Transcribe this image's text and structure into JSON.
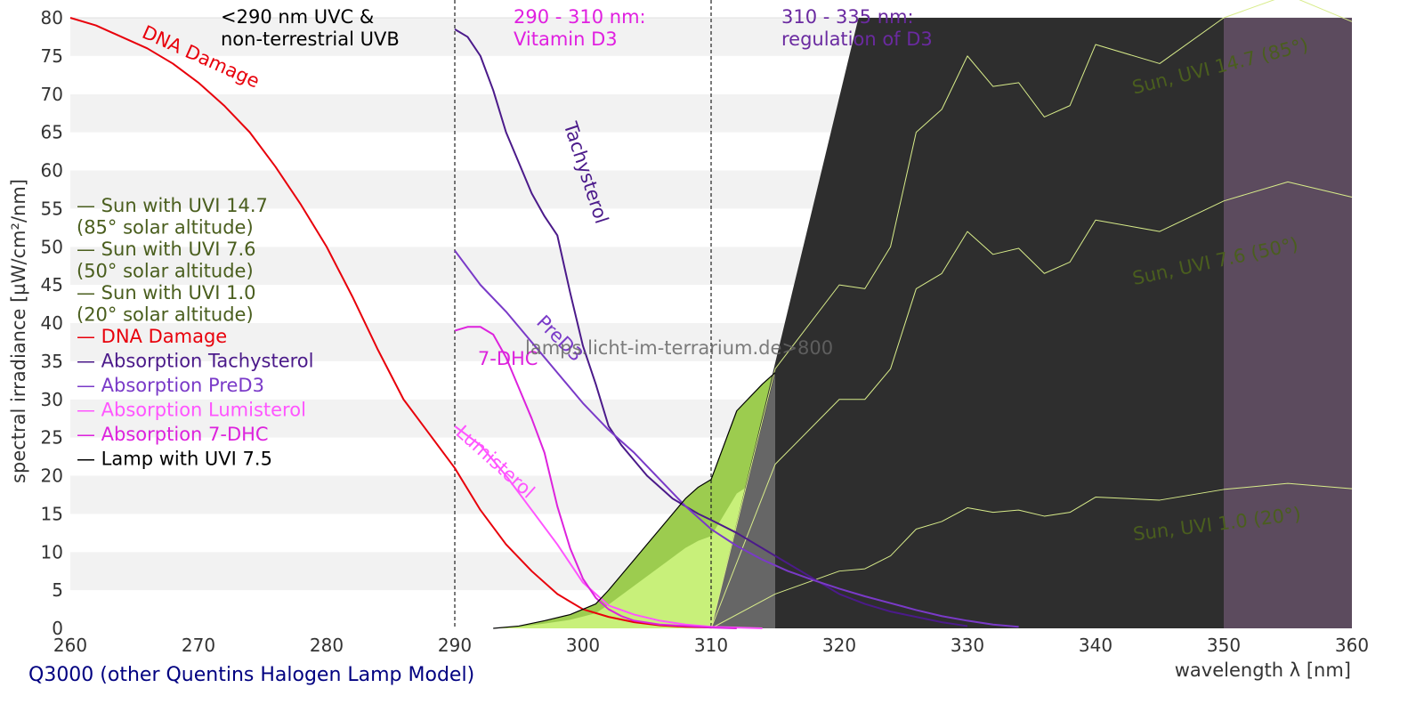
{
  "footer": "Q3000 (other Quentins Halogen Lamp Model)",
  "watermark": "lamps.licht-im-terrarium.de>800",
  "chart_data": {
    "type": "line",
    "xlabel": "wavelength λ [nm]",
    "ylabel": "spectral irradiance [µW/cm²/nm]",
    "xlim": [
      260,
      360
    ],
    "ylim": [
      0,
      80
    ],
    "xticks": [
      260,
      270,
      280,
      290,
      300,
      310,
      320,
      330,
      340,
      350,
      360
    ],
    "yticks": [
      0,
      5,
      10,
      15,
      20,
      25,
      30,
      35,
      40,
      45,
      50,
      55,
      60,
      65,
      70,
      75,
      80
    ],
    "grid": "horizontal bands",
    "region_dividers": [
      290,
      310
    ],
    "regions": [
      {
        "lines": [
          "<290 nm UVC &",
          "non-terrestrial UVB"
        ],
        "color": "#000000"
      },
      {
        "lines": [
          "290 - 310 nm:",
          "Vitamin D3"
        ],
        "color": "#e020e0"
      },
      {
        "lines": [
          "310 - 335 nm:",
          "regulation of D3"
        ],
        "color": "#6a2aa0"
      }
    ],
    "legend": [
      {
        "lines": [
          "— Sun with UVI 14.7",
          "  (85° solar altitude)"
        ],
        "color": "#4a5e1e"
      },
      {
        "lines": [
          "— Sun with UVI 7.6",
          "  (50° solar altitude)"
        ],
        "color": "#4a5e1e"
      },
      {
        "lines": [
          "— Sun with UVI 1.0",
          "  (20° solar altitude)"
        ],
        "color": "#4a5e1e"
      },
      {
        "lines": [
          "— DNA Damage"
        ],
        "color": "#e8000b"
      },
      {
        "lines": [
          "— Absorption Tachysterol"
        ],
        "color": "#4b1a8a"
      },
      {
        "lines": [
          "— Absorption PreD3"
        ],
        "color": "#7a3ac8"
      },
      {
        "lines": [
          "— Absorption Lumisterol"
        ],
        "color": "#ff55ff"
      },
      {
        "lines": [
          "— Absorption 7-DHC"
        ],
        "color": "#dd22dd"
      },
      {
        "lines": [
          "— Lamp with UVI 7.5"
        ],
        "color": "#000000"
      }
    ],
    "curve_labels": [
      {
        "text": "DNA Damage",
        "color": "#e8000b",
        "x": 265.5,
        "y": 77.5,
        "angle": 24
      },
      {
        "text": "Tachysterol",
        "color": "#4b1a8a",
        "x": 298.5,
        "y": 66,
        "angle": 72
      },
      {
        "text": "PreD3",
        "color": "#7a3ac8",
        "x": 296.3,
        "y": 40,
        "angle": 45
      },
      {
        "text": "7-DHC",
        "color": "#dd22dd",
        "x": 291.8,
        "y": 34.5,
        "angle": 0
      },
      {
        "text": "Lumisterol",
        "color": "#ff55ff",
        "x": 290,
        "y": 25.5,
        "angle": 42
      },
      {
        "text": "Sun, UVI 14.7 (85°)",
        "color": "#4a5e1e",
        "x": 343,
        "y": 70,
        "angle": -14
      },
      {
        "text": "Sun, UVI 7.6 (50°)",
        "color": "#4a5e1e",
        "x": 343,
        "y": 45,
        "angle": -12
      },
      {
        "text": "Sun, UVI 1.0 (20°)",
        "color": "#4a5e1e",
        "x": 343,
        "y": 11.5,
        "angle": -7
      }
    ],
    "series": [
      {
        "name": "Sun with UVI 14.7",
        "color": "#d8ec8a",
        "x": [
          310,
          315,
          320,
          322,
          324,
          326,
          328,
          330,
          332,
          334,
          336,
          338,
          340,
          345,
          350,
          355,
          360
        ],
        "y": [
          0,
          34,
          45,
          44.5,
          50,
          65,
          68,
          75,
          71,
          71.5,
          67,
          68.5,
          76.5,
          74,
          80,
          83,
          79.5
        ]
      },
      {
        "name": "Sun with UVI 7.6",
        "color": "#d8ec8a",
        "x": [
          310,
          315,
          320,
          322,
          324,
          326,
          328,
          330,
          332,
          334,
          336,
          338,
          340,
          345,
          350,
          355,
          360
        ],
        "y": [
          0,
          21.5,
          30,
          30,
          34,
          44.5,
          46.5,
          52,
          49,
          49.8,
          46.5,
          48,
          53.5,
          52,
          56,
          58.5,
          56.5
        ]
      },
      {
        "name": "Sun with UVI 1.0",
        "color": "#d8ec8a",
        "x": [
          310,
          315,
          320,
          322,
          324,
          326,
          328,
          330,
          332,
          334,
          336,
          338,
          340,
          345,
          350,
          355,
          360
        ],
        "y": [
          0,
          4.5,
          7.5,
          7.8,
          9.5,
          13,
          14,
          15.8,
          15.2,
          15.5,
          14.7,
          15.2,
          17.2,
          16.8,
          18.2,
          19,
          18.3
        ]
      },
      {
        "name": "DNA Damage",
        "color": "#e8000b",
        "x": [
          260,
          262,
          264,
          266,
          268,
          270,
          272,
          274,
          276,
          278,
          280,
          282,
          284,
          286,
          288,
          290,
          292,
          294,
          296,
          298,
          300,
          302,
          304,
          306,
          308,
          310
        ],
        "y": [
          80,
          79,
          77.5,
          76,
          74,
          71.5,
          68.5,
          65,
          60.5,
          55.5,
          50,
          43.5,
          36.5,
          30,
          25.5,
          21,
          15.5,
          11,
          7.5,
          4.5,
          2.5,
          1.5,
          0.8,
          0.4,
          0.2,
          0.1
        ]
      },
      {
        "name": "Absorption Tachysterol",
        "color": "#4b1a8a",
        "x": [
          290,
          291,
          292,
          293,
          294,
          295,
          296,
          297,
          298,
          299,
          300,
          301,
          302,
          303,
          304,
          305,
          306,
          307,
          308,
          309,
          310,
          312,
          314,
          316,
          318,
          320,
          322,
          324,
          326,
          328,
          330
        ],
        "y": [
          78.5,
          77.5,
          75,
          70.5,
          65,
          61,
          57,
          54,
          51.5,
          44,
          37,
          32,
          26.5,
          24,
          22,
          20,
          18.5,
          17,
          16,
          15,
          14.2,
          12.5,
          10.5,
          8.5,
          6.5,
          4.5,
          3.2,
          2.2,
          1.5,
          0.8,
          0.3
        ]
      },
      {
        "name": "Absorption PreD3",
        "color": "#7a3ac8",
        "x": [
          290,
          292,
          294,
          296,
          298,
          300,
          302,
          304,
          306,
          308,
          310,
          312,
          314,
          316,
          318,
          320,
          322,
          324,
          326,
          328,
          330,
          332,
          334
        ],
        "y": [
          49.5,
          45,
          41.5,
          37.5,
          33.5,
          29.5,
          26,
          23,
          19.5,
          16,
          13,
          10.8,
          9,
          7.5,
          6.3,
          5.2,
          4.2,
          3.3,
          2.4,
          1.6,
          1,
          0.5,
          0.2
        ]
      },
      {
        "name": "Absorption Lumisterol",
        "color": "#ff55ff",
        "x": [
          290,
          292,
          294,
          296,
          298,
          300,
          302,
          304,
          306,
          308,
          310,
          312,
          314
        ],
        "y": [
          26.5,
          24,
          20,
          15.5,
          11,
          6,
          3,
          1.8,
          1,
          0.5,
          0.2,
          0.1,
          0
        ]
      },
      {
        "name": "Absorption 7-DHC",
        "color": "#dd22dd",
        "x": [
          290,
          291,
          292,
          293,
          294,
          295,
          296,
          297,
          298,
          299,
          300,
          301,
          302,
          303,
          304,
          306,
          308,
          310,
          312
        ],
        "y": [
          39,
          39.5,
          39.5,
          38.5,
          35.5,
          31.5,
          27.5,
          23,
          16,
          10.5,
          6.5,
          4,
          2.5,
          1.6,
          1,
          0.5,
          0.3,
          0.1,
          0
        ]
      },
      {
        "name": "Lamp with UVI 7.5",
        "color": "#000000",
        "x": [
          293,
          295,
          297,
          299,
          300,
          301,
          302,
          303,
          304,
          305,
          306,
          307,
          308,
          309,
          310,
          312,
          314,
          315
        ],
        "y": [
          0,
          0.3,
          1,
          1.8,
          2.5,
          3.2,
          5,
          7,
          9,
          11,
          13,
          15,
          17,
          18.5,
          19.5,
          28.5,
          32,
          33.5
        ]
      }
    ]
  }
}
